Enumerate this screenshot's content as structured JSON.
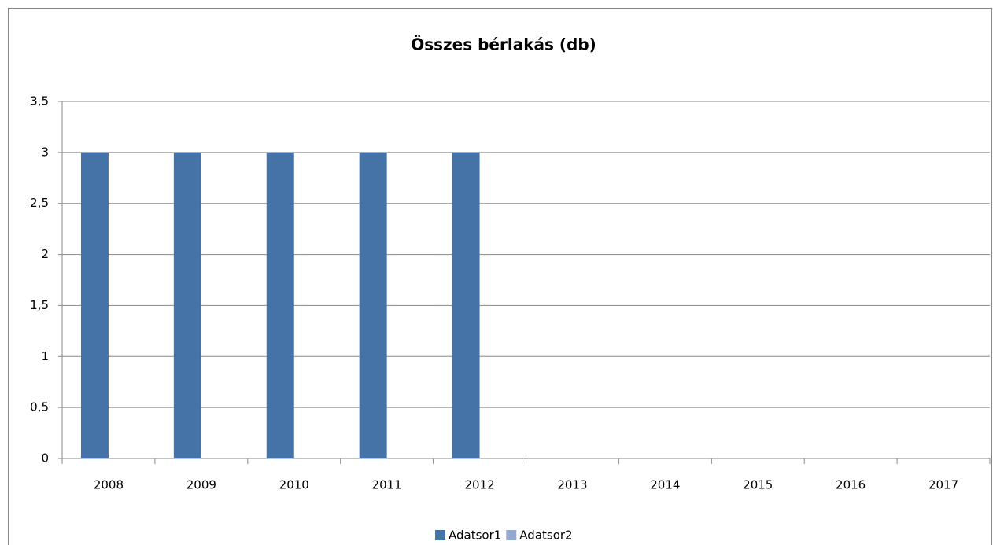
{
  "chart_data": {
    "type": "bar",
    "title": "Összes bérlakás (db)",
    "categories": [
      "2008",
      "2009",
      "2010",
      "2011",
      "2012",
      "2013",
      "2014",
      "2015",
      "2016",
      "2017"
    ],
    "series": [
      {
        "name": "Adatsor1",
        "color": "#4572a7",
        "values": [
          3,
          3,
          3,
          3,
          3,
          null,
          null,
          null,
          null,
          null
        ]
      },
      {
        "name": "Adatsor2",
        "color": "#93a9cf",
        "values": [
          null,
          null,
          null,
          null,
          null,
          null,
          null,
          null,
          null,
          null
        ]
      }
    ],
    "ylim": [
      0,
      3.5
    ],
    "yticks": [
      0,
      {
        "value": 0.5,
        "label": "0,5"
      },
      1,
      {
        "value": 1.5,
        "label": "1,5"
      },
      2,
      {
        "value": 2.5,
        "label": "2,5"
      },
      3,
      {
        "value": 3.5,
        "label": "3,5"
      }
    ],
    "grid": true,
    "legend": "bottom"
  }
}
